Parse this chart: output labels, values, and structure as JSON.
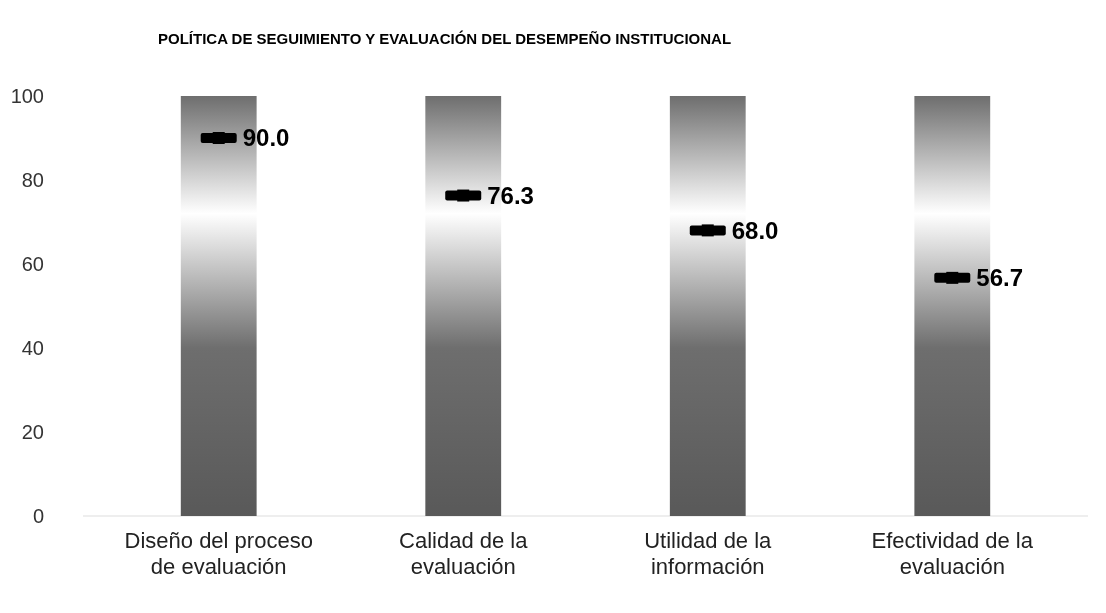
{
  "chart_data": {
    "type": "bar",
    "title": "POLÍTICA DE SEGUIMIENTO Y EVALUACIÓN DEL DESEMPEÑO INSTITUCIONAL",
    "categories": [
      "Diseño del proceso de evaluación",
      "Calidad de la evaluación",
      "Utilidad de la información",
      "Efectividad de la evaluación"
    ],
    "series": [
      {
        "color": "#6e6e6e",
        "values": [
          100,
          100,
          100,
          100
        ]
      },
      {
        "type": "scatter",
        "color": "#000000",
        "values": [
          90.0,
          76.3,
          68.0,
          56.7
        ],
        "marker": "square",
        "data_labels": true,
        "value_labels": [
          "90.0",
          "76.3",
          "68.0",
          "56.7"
        ]
      }
    ],
    "ylim": [
      0,
      100
    ],
    "yticks": [
      0,
      20,
      40,
      60,
      80,
      100
    ],
    "grid": false
  }
}
